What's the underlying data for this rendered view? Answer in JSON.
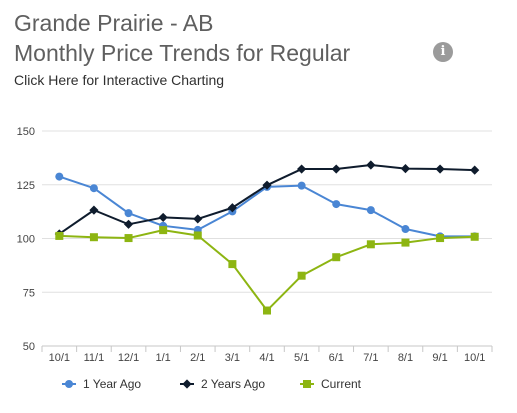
{
  "header": {
    "title_line1": "Grande Prairie - AB",
    "title_line2": "Monthly Price Trends for Regular",
    "link_text": "Click Here for Interactive Charting",
    "info_icon": "info-icon"
  },
  "chart_data": {
    "type": "line",
    "title": "",
    "xlabel": "",
    "ylabel": "",
    "x": [
      "10/1",
      "11/1",
      "12/1",
      "1/1",
      "2/1",
      "3/1",
      "4/1",
      "5/1",
      "6/1",
      "7/1",
      "8/1",
      "9/1",
      "10/1"
    ],
    "y_ticks": [
      50,
      75,
      100,
      125,
      150
    ],
    "ylim": [
      50,
      150
    ],
    "grid": true,
    "legend_position": "bottom",
    "series": [
      {
        "name": "1 Year Ago",
        "color": "#4a86d4",
        "marker": "circle",
        "values": [
          128.8,
          123.4,
          111.8,
          105.9,
          104.0,
          112.6,
          124.0,
          124.6,
          116.0,
          113.2,
          104.4,
          101.0,
          101.0
        ]
      },
      {
        "name": "2 Years Ago",
        "color": "#0f1c2d",
        "marker": "diamond",
        "values": [
          102.1,
          113.2,
          106.6,
          109.8,
          109.1,
          114.3,
          124.8,
          132.3,
          132.3,
          134.2,
          132.5,
          132.3,
          131.8
        ]
      },
      {
        "name": "Current",
        "color": "#8db512",
        "marker": "square",
        "values": [
          101.2,
          100.6,
          100.2,
          103.9,
          101.4,
          88.1,
          66.5,
          82.7,
          91.3,
          97.3,
          98.1,
          100.2,
          100.8
        ]
      }
    ]
  }
}
